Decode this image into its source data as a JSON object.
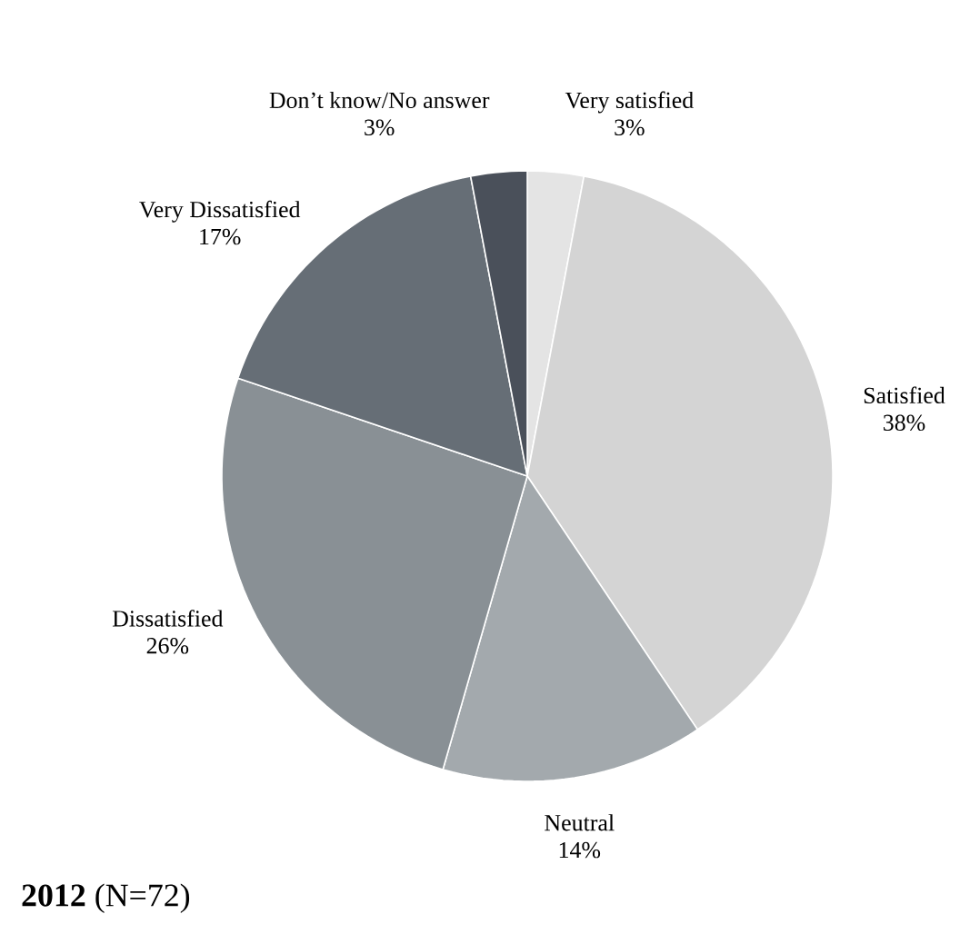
{
  "chart_data": {
    "type": "pie",
    "title": "**2012** (N=72)",
    "categories": [
      "Very satisfied",
      "Satisfied",
      "Neutral",
      "Dissatisfied",
      "Very Dissatisfied",
      "Don’t know/No answer"
    ],
    "values": [
      3,
      38,
      14,
      26,
      17,
      3
    ],
    "value_labels": [
      "3%",
      "38%",
      "14%",
      "26%",
      "17%",
      "3%"
    ],
    "colors": [
      "#e4e4e4",
      "#d4d4d4",
      "#a3a9ad",
      "#899095",
      "#666e76",
      "#4a505a"
    ]
  }
}
